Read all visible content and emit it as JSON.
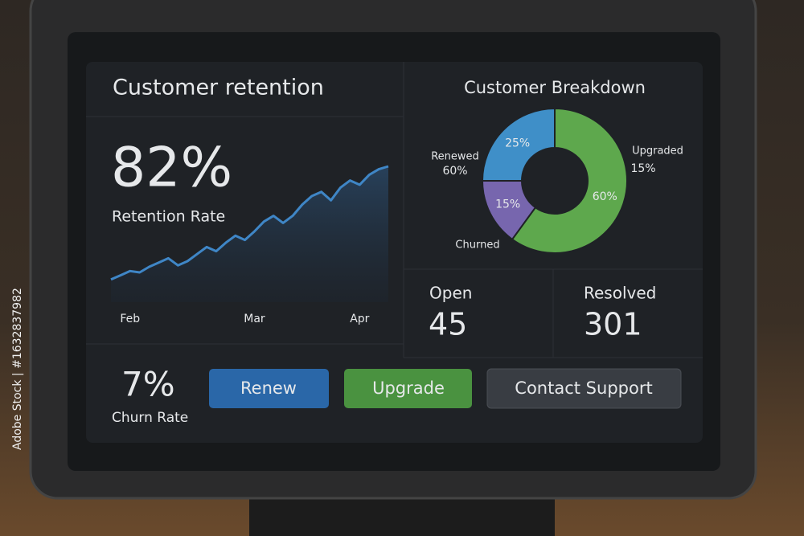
{
  "retention": {
    "title": "Customer retention",
    "value": "82%",
    "label": "Retention Rate"
  },
  "chart_data": [
    {
      "type": "line",
      "categories": [
        null,
        null,
        "Feb",
        null,
        null,
        null,
        null,
        null,
        null,
        null,
        null,
        null,
        null,
        null,
        null,
        "Mar",
        null,
        null,
        null,
        null,
        null,
        null,
        null,
        null,
        null,
        null,
        "Apr",
        null,
        null,
        null
      ],
      "series": [
        {
          "color": "#3f86c6",
          "values": [
            16,
            19,
            22,
            21,
            25,
            28,
            31,
            26,
            29,
            34,
            39,
            36,
            42,
            47,
            44,
            50,
            57,
            61,
            56,
            61,
            69,
            75,
            78,
            72,
            81,
            86,
            83,
            90,
            94,
            96
          ]
        }
      ],
      "ylim": [
        0,
        100
      ]
    },
    {
      "type": "pie",
      "title": "Customer Breakdown",
      "values": [
        60,
        15,
        25
      ],
      "value_labels": [
        "60%",
        "15%",
        "25%"
      ],
      "colors": [
        "#5ea84d",
        "#7766ae",
        "#3f8fc8"
      ],
      "annotations": [
        {
          "label": "Renewed",
          "value": "60%"
        },
        {
          "label": "Upgraded",
          "value": "15%"
        },
        {
          "label": "Churned"
        }
      ]
    }
  ],
  "tickets": [
    {
      "label": "Open",
      "value": 45
    },
    {
      "label": "Resolved",
      "value": 301
    }
  ],
  "churn": {
    "value": "7%",
    "label": "Churn Rate"
  },
  "buttons": [
    "Renew",
    "Upgrade",
    "Contact Support"
  ],
  "watermark": "Adobe Stock | #1632837982"
}
